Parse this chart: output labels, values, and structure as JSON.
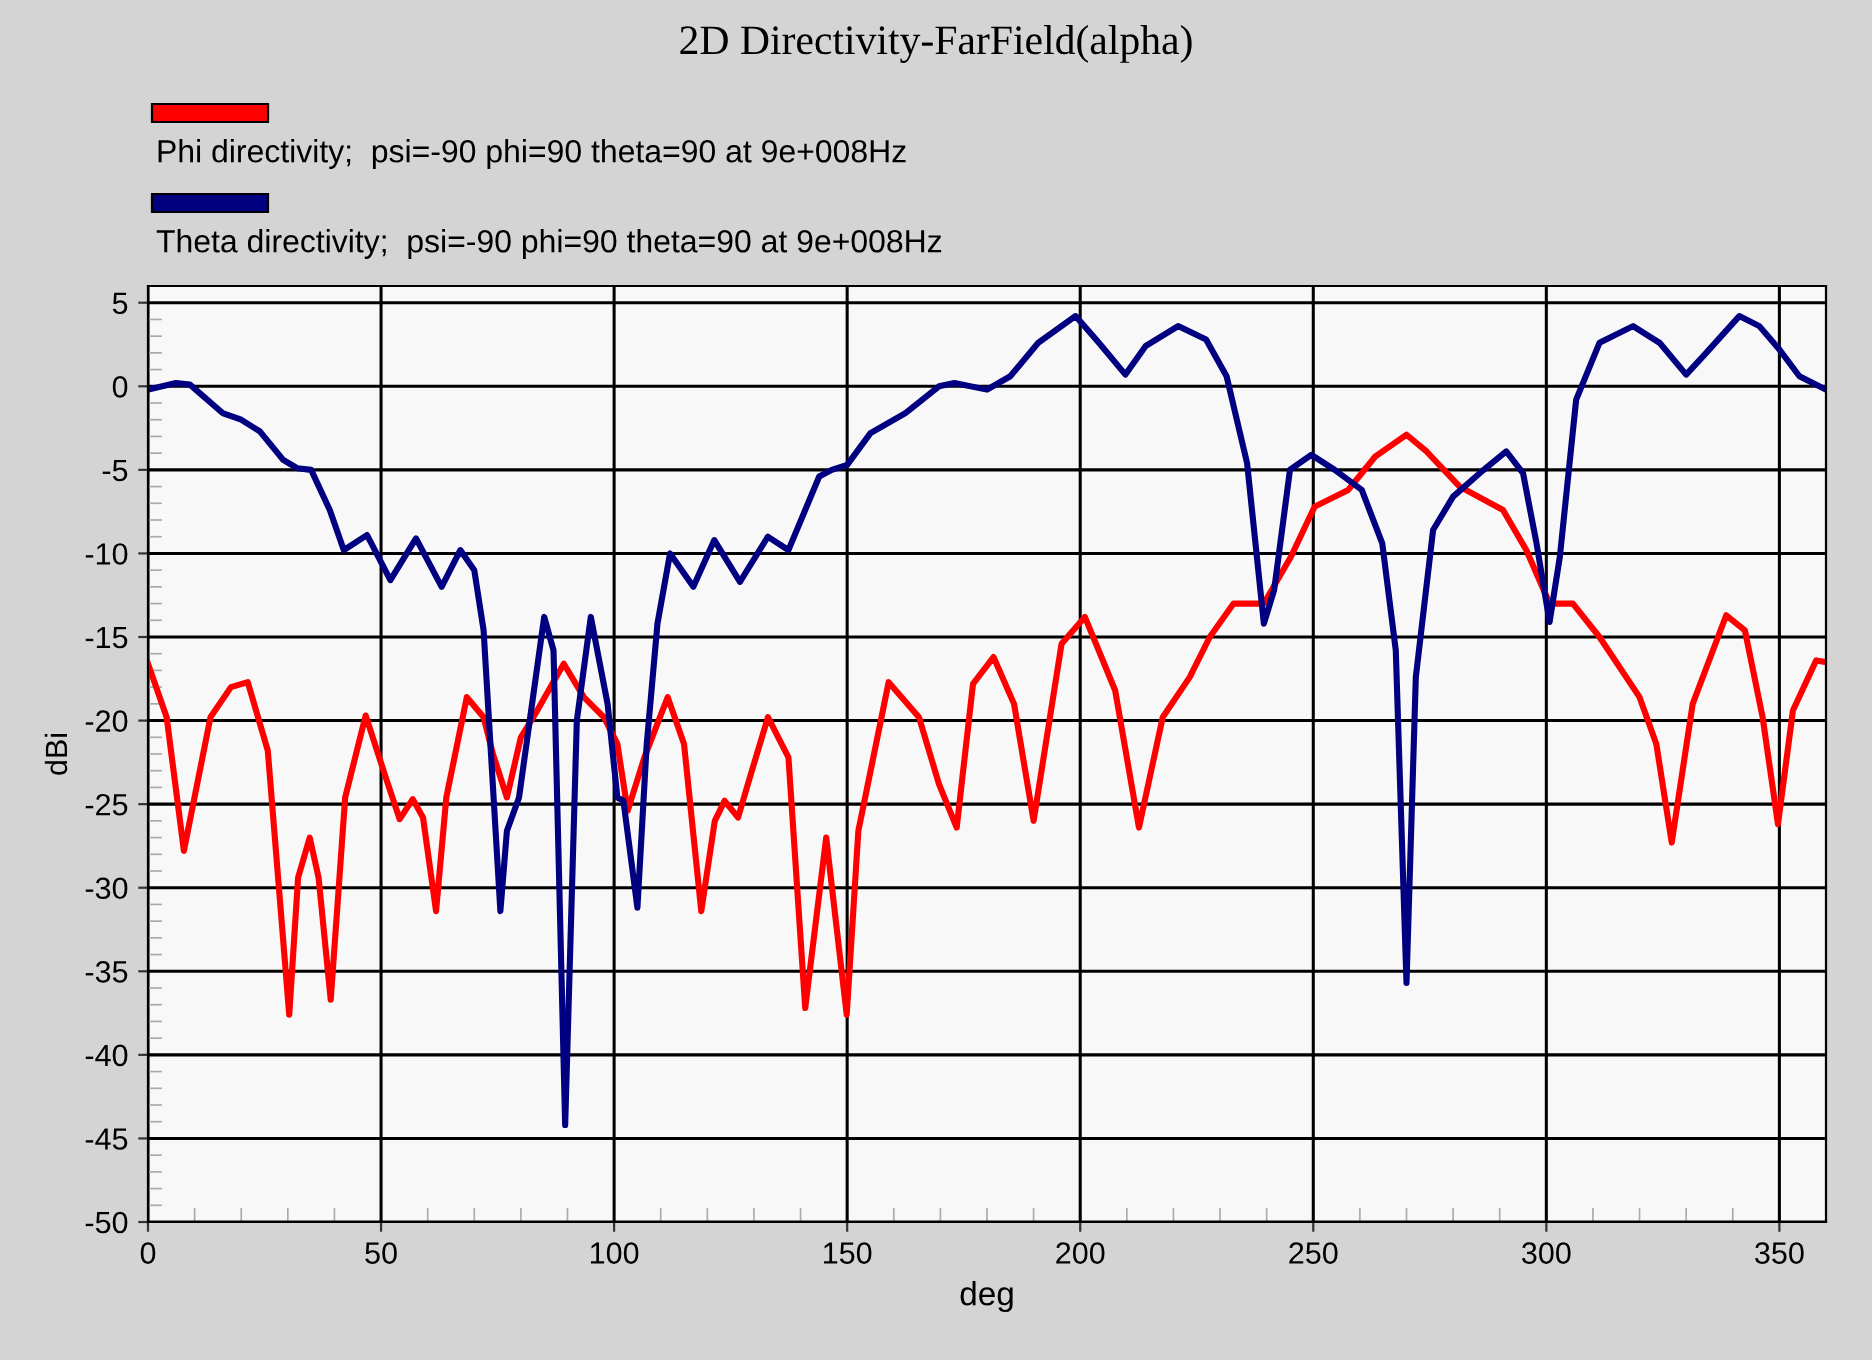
{
  "chart_data": {
    "type": "line",
    "title": "2D Directivity-FarField(alpha)",
    "xlabel": "deg",
    "ylabel": "dBi",
    "xlim": [
      0,
      360
    ],
    "xticks": [
      0,
      50,
      100,
      150,
      200,
      250,
      300,
      350
    ],
    "ylim": [
      -50,
      6
    ],
    "yticks": [
      -50,
      -45,
      -40,
      -35,
      -30,
      -25,
      -20,
      -15,
      -10,
      -5,
      0,
      5
    ],
    "grid": true,
    "legend": "top left",
    "line_style": "solid",
    "marker": "none",
    "series": [
      {
        "name": "Phi directivity;  psi=-90 phi=90 theta=90 at 9e+008Hz",
        "color": "#ff0000",
        "x": [
          0,
          4,
          7.7,
          13.4,
          17.8,
          21.4,
          25.7,
          30.3,
          32.2,
          34.7,
          36.6,
          39.2,
          42.3,
          46.7,
          51,
          54,
          56.8,
          59,
          61.8,
          64,
          68.4,
          72,
          74,
          77,
          80,
          83.5,
          89.2,
          93.5,
          97.8,
          100.7,
          102.9,
          106.5,
          111.5,
          115,
          118.7,
          121.6,
          123.7,
          126.6,
          128.7,
          133,
          137.4,
          141,
          145.5,
          149.9,
          152.4,
          158.9,
          165.4,
          169.7,
          173.5,
          177,
          181.4,
          185.8,
          190,
          196,
          201,
          207.5,
          212.6,
          217.7,
          223.5,
          227.8,
          232.9,
          239.4,
          245.2,
          250.3,
          257.5,
          263.3,
          270,
          274.3,
          281.4,
          290.7,
          295.7,
          300.7,
          305.7,
          311.4,
          320,
          323.6,
          326.9,
          331.4,
          338.6,
          342.6,
          346.4,
          349.7,
          352.9,
          357.9,
          360
        ],
        "values": [
          -16.6,
          -19.8,
          -27.8,
          -19.8,
          -18,
          -17.7,
          -21.8,
          -37.6,
          -29.4,
          -27,
          -29.4,
          -36.7,
          -24.6,
          -19.7,
          -23.4,
          -25.9,
          -24.7,
          -25.8,
          -31.4,
          -24.6,
          -18.6,
          -19.8,
          -22,
          -24.6,
          -21,
          -19.4,
          -16.6,
          -18.6,
          -19.8,
          -21.4,
          -25.4,
          -22.2,
          -18.6,
          -21.4,
          -31.4,
          -26,
          -24.8,
          -25.8,
          -23.8,
          -19.8,
          -22.2,
          -37.2,
          -27,
          -37.6,
          -26.6,
          -17.7,
          -19.8,
          -23.8,
          -26.4,
          -17.8,
          -16.2,
          -19,
          -26,
          -15.4,
          -13.8,
          -18.2,
          -26.4,
          -19.8,
          -17.4,
          -15,
          -13,
          -13,
          -10.2,
          -7.2,
          -6.2,
          -4.2,
          -2.9,
          -3.9,
          -6,
          -7.4,
          -9.8,
          -13,
          -13,
          -15,
          -18.6,
          -21.4,
          -27.3,
          -19,
          -13.7,
          -14.6,
          -19.8,
          -26.2,
          -19.4,
          -16.4,
          -16.5
        ]
      },
      {
        "name": "Theta directivity;  psi=-90 phi=90 theta=90 at 9e+008Hz",
        "color": "#000080",
        "x": [
          0,
          6,
          9,
          16,
          20,
          24,
          29,
          32,
          35,
          39,
          42,
          47,
          52,
          57.5,
          63,
          67,
          70,
          72,
          75.6,
          77,
          79.6,
          82,
          85,
          87,
          89.5,
          92,
          95,
          98.6,
          100.7,
          102,
          105,
          107,
          109.3,
          112,
          117,
          121.5,
          127,
          133,
          137.4,
          144,
          146.7,
          150,
          155,
          162.5,
          169.7,
          173,
          180,
          185,
          191,
          199,
          204,
          209.7,
          214,
          221,
          227,
          231.4,
          235.8,
          239.4,
          241.6,
          245,
          249.6,
          254.6,
          260.4,
          264.8,
          267.7,
          270,
          272,
          275.7,
          280,
          285.7,
          291.4,
          295,
          297.9,
          300.7,
          302.9,
          306.4,
          311.4,
          318.6,
          324.3,
          330,
          334.3,
          341.4,
          345.7,
          350,
          354.3,
          360
        ],
        "values": [
          -0.2,
          0.2,
          0.1,
          -1.6,
          -2,
          -2.7,
          -4.4,
          -4.9,
          -5,
          -7.4,
          -9.8,
          -8.9,
          -11.6,
          -9.1,
          -12,
          -9.8,
          -11,
          -14.6,
          -31.4,
          -26.6,
          -24.6,
          -19.8,
          -13.8,
          -15.8,
          -44.2,
          -20,
          -13.8,
          -19,
          -24.6,
          -24.8,
          -31.2,
          -21.4,
          -14.2,
          -10,
          -12,
          -9.2,
          -11.7,
          -9,
          -9.8,
          -5.4,
          -5,
          -4.7,
          -2.8,
          -1.6,
          0,
          0.2,
          -0.2,
          0.6,
          2.6,
          4.2,
          2.6,
          0.7,
          2.4,
          3.6,
          2.8,
          0.6,
          -4.6,
          -14.2,
          -12.2,
          -5,
          -4.1,
          -5,
          -6.2,
          -9.4,
          -15.8,
          -35.7,
          -17.4,
          -8.6,
          -6.6,
          -5.2,
          -3.9,
          -5.2,
          -9.4,
          -14.1,
          -10.2,
          -0.8,
          2.6,
          3.6,
          2.6,
          0.7,
          2,
          4.2,
          3.6,
          2.2,
          0.6,
          -0.2
        ]
      }
    ]
  }
}
